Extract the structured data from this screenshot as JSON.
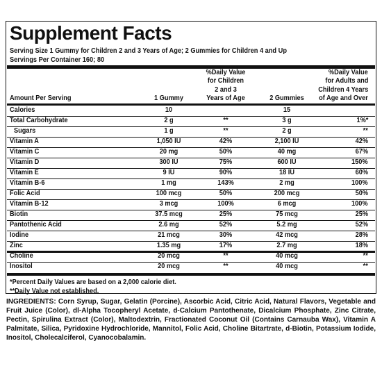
{
  "header": {
    "title": "Supplement Facts",
    "serving_size": "Serving Size 1 Gummy for Children 2 and 3 Years of Age; 2 Gummies for Children 4 and Up",
    "servings_per_container": "Servings Per Container 160; 80"
  },
  "table": {
    "columns": [
      [
        "Amount Per Serving"
      ],
      [
        "1 Gummy"
      ],
      [
        "%Daily Value",
        "for Children",
        "2 and 3",
        "Years of Age"
      ],
      [
        "2 Gummies"
      ],
      [
        "%Daily Value",
        "for Adults and",
        "Children 4 Years",
        "of Age and Over"
      ]
    ],
    "rows": [
      [
        "Calories",
        "10",
        "",
        "15",
        ""
      ],
      [
        "Total Carbohydrate",
        "2 g",
        "**",
        "3 g",
        "1%*"
      ],
      [
        "Sugars",
        "1 g",
        "**",
        "2 g",
        "**"
      ],
      [
        "Vitamin A",
        "1,050 IU",
        "42%",
        "2,100 IU",
        "42%"
      ],
      [
        "Vitamin C",
        "20 mg",
        "50%",
        "40 mg",
        "67%"
      ],
      [
        "Vitamin D",
        "300 IU",
        "75%",
        "600 IU",
        "150%"
      ],
      [
        "Vitamin E",
        "9 IU",
        "90%",
        "18 IU",
        "60%"
      ],
      [
        "Vitamin B-6",
        "1 mg",
        "143%",
        "2 mg",
        "100%"
      ],
      [
        "Folic Acid",
        "100 mcg",
        "50%",
        "200 mcg",
        "50%"
      ],
      [
        "Vitamin B-12",
        "3 mcg",
        "100%",
        "6 mcg",
        "100%"
      ],
      [
        "Biotin",
        "37.5 mcg",
        "25%",
        "75 mcg",
        "25%"
      ],
      [
        "Pantothenic Acid",
        "2.6 mg",
        "52%",
        "5.2 mg",
        "52%"
      ],
      [
        "Iodine",
        "21 mcg",
        "30%",
        "42 mcg",
        "28%"
      ],
      [
        "Zinc",
        "1.35 mg",
        "17%",
        "2.7 mg",
        "18%"
      ],
      [
        "Choline",
        "20 mcg",
        "**",
        "40 mcg",
        "**"
      ],
      [
        "Inositol",
        "20 mcg",
        "**",
        "40 mcg",
        "**"
      ]
    ]
  },
  "footnotes": [
    "*Percent Daily Values are based on a 2,000 calorie diet.",
    "**Daily Value not established."
  ],
  "ingredients": "INGREDIENTS: Corn Syrup, Sugar, Gelatin (Porcine), Ascorbic Acid, Citric Acid, Natural Flavors, Vegetable and Fruit Juice (Color), dl-Alpha Tocopheryl Acetate, d-Calcium Pantothenate, Dicalcium Phosphate, Zinc Citrate, Pectin, Spirulina Extract (Color), Maltodextrin, Fractionated Coconut Oil (Contains Carnauba Wax), Vitamin A Palmitate, Silica, Pyridoxine Hydrochloride, Mannitol, Folic Acid, Choline Bitartrate, d-Biotin, Potassium Iodide, Inositol, Cholecalciferol, Cyanocobalamin."
}
